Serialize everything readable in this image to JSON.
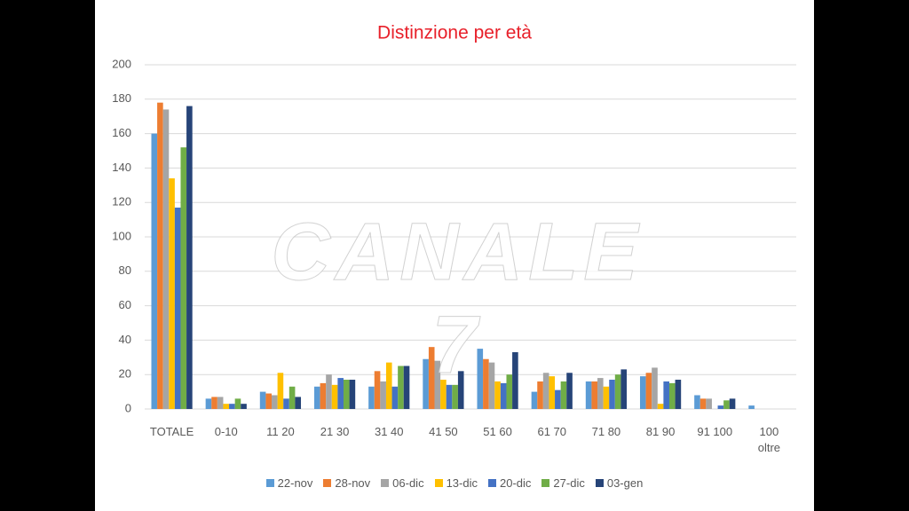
{
  "chart_data": {
    "type": "bar",
    "title": "Distinzione per età",
    "categories": [
      "TOTALE",
      "0-10",
      "11 20",
      "21 30",
      "31 40",
      "41 50",
      "51 60",
      "61 70",
      "71 80",
      "81 90",
      "91 100",
      "100\noltre"
    ],
    "series": [
      {
        "name": "22-nov",
        "color": "#5b9bd5",
        "values": [
          160,
          6,
          10,
          13,
          13,
          29,
          35,
          10,
          16,
          19,
          8,
          2
        ]
      },
      {
        "name": "28-nov",
        "color": "#ed7d31",
        "values": [
          178,
          7,
          9,
          15,
          22,
          36,
          29,
          16,
          16,
          21,
          6,
          0
        ]
      },
      {
        "name": "06-dic",
        "color": "#a5a5a5",
        "values": [
          174,
          7,
          8,
          20,
          16,
          28,
          27,
          21,
          18,
          24,
          6,
          0
        ]
      },
      {
        "name": "13-dic",
        "color": "#ffc000",
        "values": [
          134,
          3,
          21,
          14,
          27,
          17,
          16,
          19,
          13,
          3,
          0,
          0
        ]
      },
      {
        "name": "20-dic",
        "color": "#4472c4",
        "values": [
          117,
          3,
          6,
          18,
          13,
          14,
          15,
          11,
          17,
          16,
          2,
          0
        ]
      },
      {
        "name": "27-dic",
        "color": "#70ad47",
        "values": [
          152,
          6,
          13,
          17,
          25,
          14,
          20,
          16,
          20,
          15,
          5,
          0
        ]
      },
      {
        "name": "03-gen",
        "color": "#264478",
        "values": [
          176,
          3,
          7,
          17,
          25,
          22,
          33,
          21,
          23,
          17,
          6,
          0
        ]
      }
    ],
    "ylim": [
      0,
      200
    ],
    "yticks": [
      0,
      20,
      40,
      60,
      80,
      100,
      120,
      140,
      160,
      180,
      200
    ],
    "grid": true,
    "legend": "bottom"
  },
  "watermark": "CANALE 7"
}
